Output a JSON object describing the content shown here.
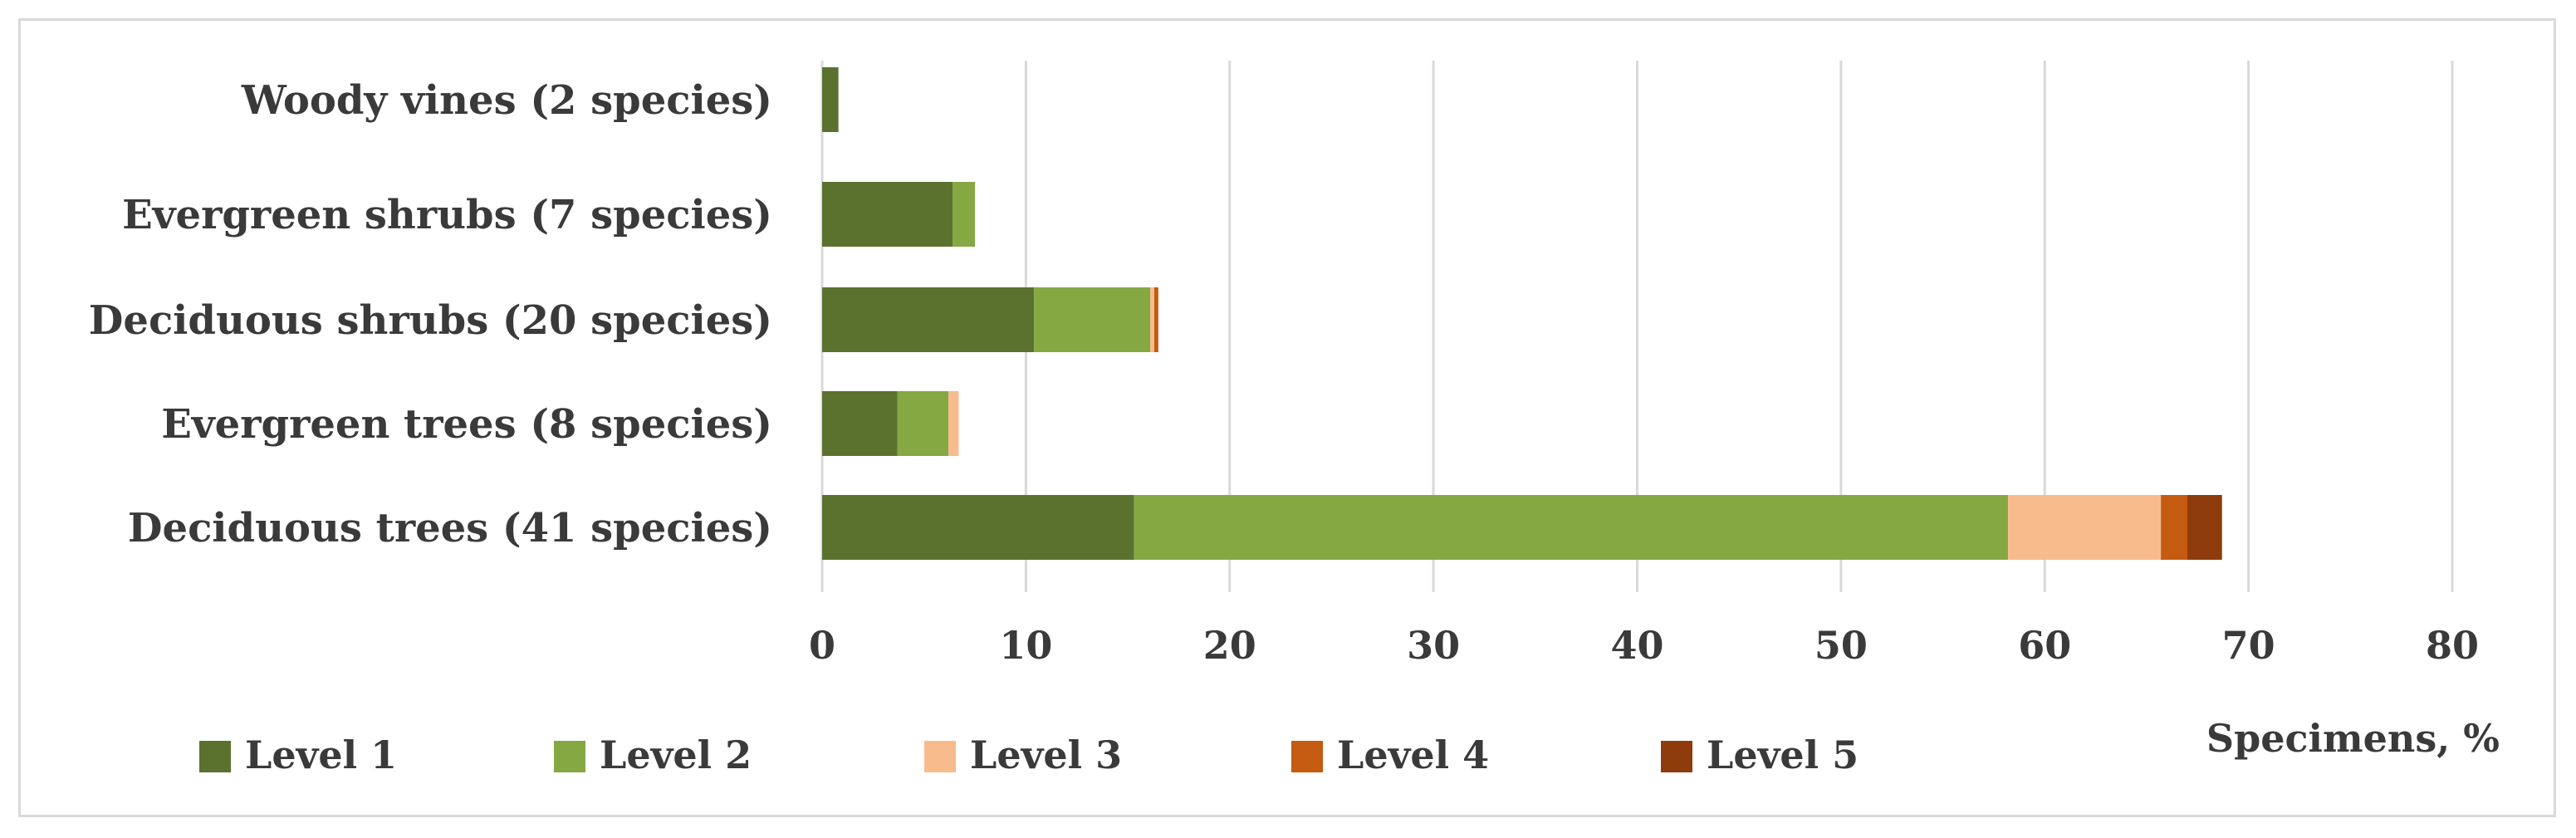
{
  "chart_data": {
    "type": "bar",
    "orientation": "horizontal",
    "stacked": true,
    "categories": [
      "Woody vines (2 species)",
      "Evergreen shrubs (7 species)",
      "Deciduous  shrubs (20 species)",
      "Evergreen trees (8 species)",
      "Deciduous trees (41 species)"
    ],
    "series": [
      {
        "name": "Level 1",
        "color": "#5b722f",
        "values": [
          0.8,
          6.4,
          10.4,
          3.7,
          15.3
        ]
      },
      {
        "name": "Level 2",
        "color": "#85a843",
        "values": [
          0.0,
          1.1,
          5.7,
          2.5,
          42.9
        ]
      },
      {
        "name": "Level 3",
        "color": "#f8bb8c",
        "values": [
          0.0,
          0.0,
          0.2,
          0.5,
          7.5
        ]
      },
      {
        "name": "Level 4",
        "color": "#c55a11",
        "values": [
          0.0,
          0.0,
          0.2,
          0.0,
          1.3
        ]
      },
      {
        "name": "Level 5",
        "color": "#8e3c0c",
        "values": [
          0.0,
          0.0,
          0.0,
          0.0,
          1.7
        ]
      }
    ],
    "xlabel": "Specimens, %",
    "xlim": [
      0,
      80
    ],
    "xticks": [
      0,
      10,
      20,
      30,
      40,
      50,
      60,
      70,
      80
    ],
    "grid": "vertical",
    "legend": "bottom"
  }
}
